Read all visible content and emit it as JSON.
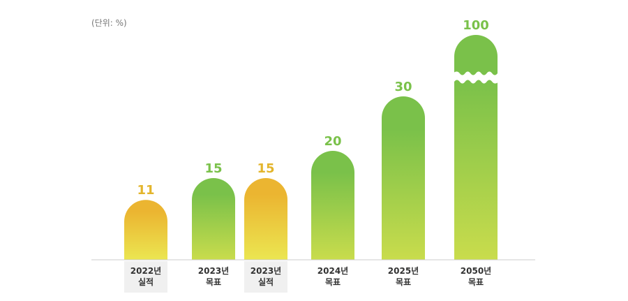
{
  "chart_data": {
    "type": "bar",
    "unit_label": "(단위: %)",
    "categories": [
      {
        "year": "2022년",
        "kind": "실적"
      },
      {
        "year": "2023년",
        "kind": "목표"
      },
      {
        "year": "2023년",
        "kind": "실적"
      },
      {
        "year": "2024년",
        "kind": "목표"
      },
      {
        "year": "2025년",
        "kind": "목표"
      },
      {
        "year": "2050년",
        "kind": "목표"
      }
    ],
    "values": [
      11,
      15,
      15,
      20,
      30,
      100
    ],
    "bar_styles": [
      "actual",
      "target",
      "actual",
      "target",
      "target",
      "target"
    ],
    "axis_break_on": [
      5
    ],
    "colors": {
      "target_top": "#7ac14a",
      "target_bottom": "#c9dc4c",
      "actual_top": "#ebb531",
      "actual_bottom": "#ebe651",
      "target_label": "#7ac14a",
      "actual_label": "#e3b52c",
      "actual_label_bg": "#f0f0f0",
      "baseline": "#cccccc"
    }
  }
}
